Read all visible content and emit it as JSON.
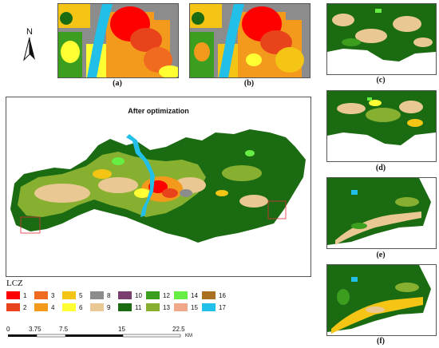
{
  "north": {
    "letter": "N"
  },
  "panels": {
    "a": "(a)",
    "b": "(b)",
    "c": "(c)",
    "d": "(d)",
    "e": "(e)",
    "f": "(f)"
  },
  "main_map": {
    "title": "After optimization"
  },
  "legend": {
    "title": "LCZ",
    "items": [
      {
        "label": "1",
        "color": "#ff0000"
      },
      {
        "label": "2",
        "color": "#e8431a"
      },
      {
        "label": "3",
        "color": "#f06a20"
      },
      {
        "label": "4",
        "color": "#f39a1c"
      },
      {
        "label": "5",
        "color": "#f5c516"
      },
      {
        "label": "6",
        "color": "#ffff33"
      },
      {
        "label": "8",
        "color": "#8c8c8c"
      },
      {
        "label": "9",
        "color": "#e9c894"
      },
      {
        "label": "10",
        "color": "#7a3e6e"
      },
      {
        "label": "11",
        "color": "#1a6b12"
      },
      {
        "label": "12",
        "color": "#3c9e1e"
      },
      {
        "label": "13",
        "color": "#88b030"
      },
      {
        "label": "14",
        "color": "#66ee44"
      },
      {
        "label": "15",
        "color": "#f0a888"
      },
      {
        "label": "16",
        "color": "#a87020"
      },
      {
        "label": "17",
        "color": "#22c0e8"
      }
    ]
  },
  "scale_bar": {
    "ticks": [
      "0",
      "3.75",
      "7.5",
      "15",
      "22.5"
    ],
    "unit": "KM"
  }
}
